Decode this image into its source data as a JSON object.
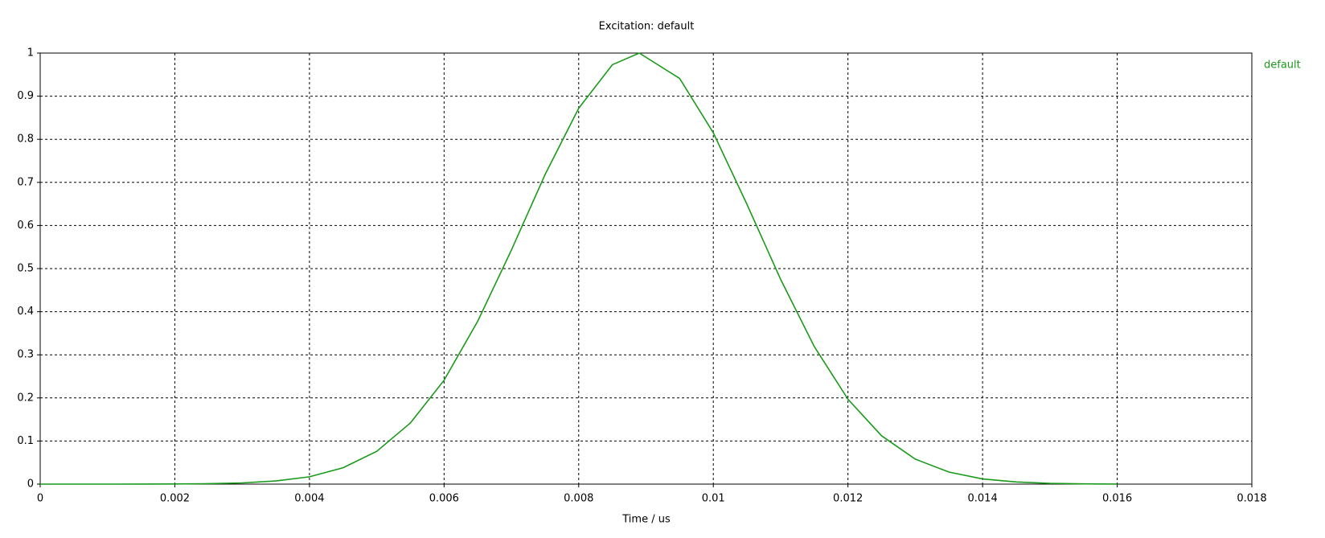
{
  "chart_data": {
    "type": "line",
    "title": "Excitation: default",
    "x_label": "Time / us",
    "x": [
      0,
      0.0005,
      0.001,
      0.0015,
      0.002,
      0.0025,
      0.003,
      0.0035,
      0.004,
      0.0045,
      0.005,
      0.0055,
      0.006,
      0.0065,
      0.007,
      0.0075,
      0.008,
      0.0085,
      0.0089,
      0.0095,
      0.01,
      0.0105,
      0.011,
      0.0115,
      0.012,
      0.0125,
      0.013,
      0.0135,
      0.014,
      0.0145,
      0.015,
      0.0155,
      0.016
    ],
    "series": [
      {
        "name": "default",
        "color": "#1a9a1a",
        "values": [
          0,
          0,
          0,
          0.0001,
          0.0003,
          0.001,
          0.0028,
          0.0073,
          0.017,
          0.038,
          0.076,
          0.142,
          0.241,
          0.378,
          0.543,
          0.718,
          0.872,
          0.973,
          1,
          0.941,
          0.815,
          0.649,
          0.475,
          0.319,
          0.197,
          0.112,
          0.058,
          0.028,
          0.012,
          0.005,
          0.0018,
          0.0006,
          0.0002
        ]
      }
    ],
    "xlim": [
      0,
      0.018
    ],
    "xticks": [
      0,
      0.002,
      0.004,
      0.006,
      0.008,
      0.01,
      0.012,
      0.014,
      0.016,
      0.018
    ],
    "ylim": [
      0,
      1
    ],
    "yticks": [
      0,
      0.1,
      0.2,
      0.3,
      0.4,
      0.5,
      0.6,
      0.7,
      0.8,
      0.9,
      1
    ],
    "grid": true,
    "legend": "right"
  }
}
